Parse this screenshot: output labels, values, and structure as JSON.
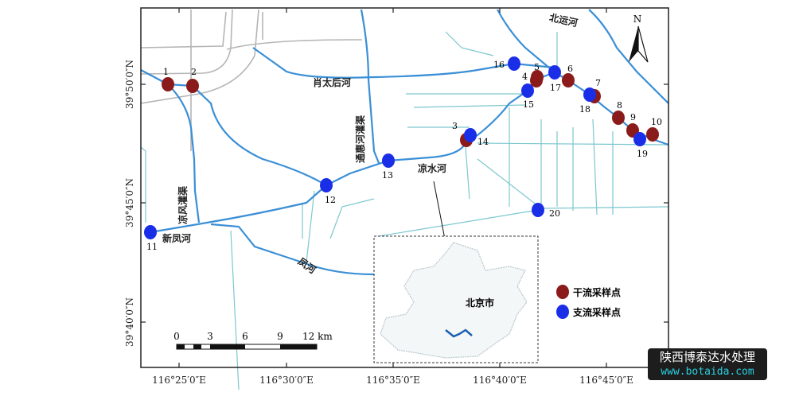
{
  "map": {
    "lat_ticks": [
      "39°50′0″N",
      "39°45′0″N",
      "39°40′0″N"
    ],
    "lon_ticks": [
      "116°25′0″E",
      "116°30′0″E",
      "116°35′0″E",
      "116°40′0″E",
      "116°45′0″E"
    ],
    "north_label": "N",
    "rivers": {
      "beiyun": "北运河",
      "xiaotaihou": "肖太后河",
      "tonghui": "通惠河灌渠",
      "liangshui": "凉水河",
      "liangfeng": "凉风灌渠",
      "xinfeng": "新凤河",
      "feng": "凤河"
    },
    "inset_label": "北京市",
    "scale": {
      "labels": [
        "0",
        "3",
        "6",
        "9",
        "12 km"
      ]
    },
    "legend": [
      {
        "label": "干流采样点",
        "color": "#8b1a1a"
      },
      {
        "label": "支流采样点",
        "color": "#1a2ee8"
      }
    ],
    "points": [
      {
        "id": "1",
        "type": "main"
      },
      {
        "id": "2",
        "type": "main"
      },
      {
        "id": "3",
        "type": "main"
      },
      {
        "id": "4",
        "type": "main"
      },
      {
        "id": "5",
        "type": "main"
      },
      {
        "id": "6",
        "type": "main"
      },
      {
        "id": "7",
        "type": "main"
      },
      {
        "id": "8",
        "type": "main"
      },
      {
        "id": "9",
        "type": "main"
      },
      {
        "id": "10",
        "type": "main"
      },
      {
        "id": "11",
        "type": "tributary"
      },
      {
        "id": "12",
        "type": "tributary"
      },
      {
        "id": "13",
        "type": "tributary"
      },
      {
        "id": "14",
        "type": "tributary"
      },
      {
        "id": "15",
        "type": "tributary"
      },
      {
        "id": "16",
        "type": "tributary"
      },
      {
        "id": "17",
        "type": "tributary"
      },
      {
        "id": "18",
        "type": "tributary"
      },
      {
        "id": "19",
        "type": "tributary"
      },
      {
        "id": "20",
        "type": "tributary"
      }
    ],
    "colors": {
      "river": "#3a8fd6",
      "canal": "#7cc7cf",
      "road": "#b5b5b5"
    }
  },
  "watermark": {
    "line1": "陕西博泰达水处理",
    "line2": "www.botaida.com"
  }
}
